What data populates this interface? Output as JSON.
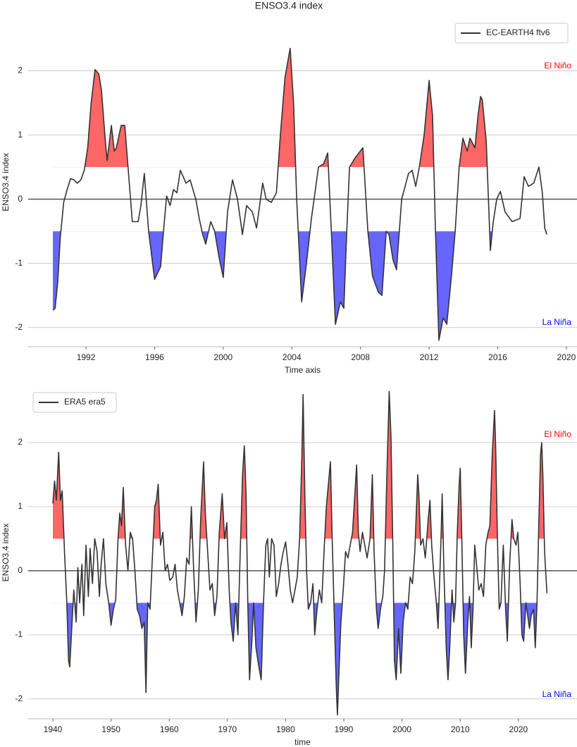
{
  "chart_data": [
    {
      "type": "line",
      "title": "ENSO3.4 index",
      "xlabel": "Time axis",
      "ylabel": "ENSO3.4 index",
      "x": [
        1990.07,
        1990.2,
        1990.35,
        1990.5,
        1990.7,
        1990.9,
        1991.1,
        1991.3,
        1991.5,
        1991.7,
        1991.9,
        1992.1,
        1992.3,
        1992.53,
        1992.75,
        1992.9,
        1993.1,
        1993.23,
        1993.48,
        1993.65,
        1993.77,
        1994.05,
        1994.26,
        1994.45,
        1994.7,
        1995.04,
        1995.2,
        1995.4,
        1995.65,
        1996.0,
        1996.35,
        1996.55,
        1996.7,
        1996.9,
        1997.1,
        1997.3,
        1997.5,
        1997.83,
        1998.07,
        1998.4,
        1998.6,
        1998.8,
        1998.98,
        1999.27,
        1999.5,
        1999.75,
        2000.0,
        2000.25,
        2000.54,
        2000.83,
        2001.12,
        2001.36,
        2001.7,
        2001.94,
        2002.3,
        2002.5,
        2002.8,
        2003.1,
        2003.33,
        2003.6,
        2003.9,
        2004.1,
        2004.28,
        2004.57,
        2004.85,
        2005.14,
        2005.55,
        2005.85,
        2006.09,
        2006.3,
        2006.54,
        2006.83,
        2007.03,
        2007.2,
        2007.36,
        2007.7,
        2008.14,
        2008.43,
        2008.7,
        2009.04,
        2009.25,
        2009.5,
        2009.66,
        2009.9,
        2010.1,
        2010.4,
        2010.8,
        2011.01,
        2011.22,
        2011.43,
        2011.71,
        2012.0,
        2012.2,
        2012.37,
        2012.57,
        2012.82,
        2013.03,
        2013.3,
        2013.52,
        2013.75,
        2013.97,
        2014.22,
        2014.38,
        2014.67,
        2014.85,
        2015.0,
        2015.1,
        2015.33,
        2015.57,
        2015.74,
        2015.94,
        2016.15,
        2016.43,
        2016.84,
        2017.3,
        2017.54,
        2017.79,
        2018.1,
        2018.4,
        2018.6,
        2018.74,
        2018.86
      ],
      "series": [
        {
          "name": "EC-EARTH4 ftv6",
          "color": "#333333",
          "values": [
            -1.73,
            -1.7,
            -1.3,
            -0.6,
            -0.05,
            0.15,
            0.32,
            0.3,
            0.25,
            0.3,
            0.45,
            0.8,
            1.5,
            2.02,
            1.95,
            1.7,
            1.0,
            0.6,
            1.15,
            0.75,
            0.8,
            1.15,
            1.15,
            0.5,
            -0.35,
            -0.35,
            -0.1,
            0.4,
            -0.5,
            -1.25,
            -1.05,
            -0.4,
            0.05,
            -0.1,
            0.15,
            0.1,
            0.45,
            0.25,
            0.3,
            0.0,
            -0.3,
            -0.55,
            -0.7,
            -0.35,
            -0.5,
            -0.9,
            -1.22,
            -0.2,
            0.3,
            0.0,
            -0.55,
            -0.1,
            -0.2,
            -0.45,
            0.25,
            0.0,
            -0.05,
            0.1,
            1.0,
            1.9,
            2.35,
            1.5,
            0.0,
            -1.6,
            -1.0,
            -0.3,
            0.5,
            0.55,
            0.72,
            -0.5,
            -1.95,
            -1.6,
            -1.7,
            -0.5,
            0.5,
            0.65,
            0.8,
            -0.5,
            -1.2,
            -1.45,
            -1.5,
            -0.5,
            -0.55,
            -0.95,
            -1.1,
            0.0,
            0.4,
            0.45,
            0.2,
            0.5,
            1.0,
            1.85,
            1.3,
            -0.5,
            -2.2,
            -1.85,
            -1.95,
            -1.2,
            -0.5,
            0.5,
            0.95,
            0.75,
            0.95,
            0.8,
            1.3,
            1.6,
            1.55,
            0.9,
            -0.8,
            -0.35,
            0.0,
            0.12,
            -0.2,
            -0.35,
            -0.3,
            0.35,
            0.2,
            0.25,
            0.5,
            0.1,
            -0.45,
            -0.55
          ]
        }
      ],
      "xlim": [
        1988.63,
        2020.62
      ],
      "xticks": [
        1992,
        1996,
        2000,
        2004,
        2008,
        2012,
        2016,
        2020
      ],
      "ylim": [
        -2.3,
        2.83
      ],
      "yticks": [
        -2,
        -1,
        0,
        1,
        2
      ],
      "grid": true,
      "hline": 0,
      "fill_above": {
        "level": 0.5,
        "color": "#ff6666"
      },
      "fill_below": {
        "level": -0.5,
        "color": "#6666ff"
      },
      "annotations": [
        {
          "text": "El Niño",
          "color": "#ff0000"
        },
        {
          "text": "La Niña",
          "color": "#0000ff"
        }
      ],
      "legend": "upper right"
    },
    {
      "type": "line",
      "xlabel": "time",
      "ylabel": "ENSO3.4 index",
      "x": [
        1940.0,
        1940.3,
        1940.6,
        1941.0,
        1941.3,
        1941.6,
        1942.0,
        1942.4,
        1942.7,
        1942.9,
        1943.3,
        1943.6,
        1944.0,
        1944.3,
        1944.6,
        1945.0,
        1945.3,
        1945.7,
        1946.1,
        1946.4,
        1946.8,
        1947.2,
        1947.6,
        1948.0,
        1948.3,
        1948.7,
        1949.1,
        1949.6,
        1950.0,
        1950.4,
        1950.8,
        1951.2,
        1951.5,
        1951.8,
        1952.1,
        1952.5,
        1952.9,
        1953.3,
        1953.7,
        1954.1,
        1954.5,
        1954.9,
        1955.3,
        1955.7,
        1956.0,
        1956.3,
        1956.7,
        1957.1,
        1957.5,
        1957.8,
        1958.1,
        1958.5,
        1958.9,
        1959.3,
        1959.7,
        1960.1,
        1960.6,
        1961.0,
        1961.4,
        1961.8,
        1962.2,
        1962.6,
        1963.0,
        1963.4,
        1963.8,
        1964.2,
        1964.6,
        1965.0,
        1965.4,
        1965.9,
        1966.2,
        1966.6,
        1967.0,
        1967.4,
        1967.8,
        1968.2,
        1968.6,
        1969.1,
        1969.5,
        1969.9,
        1970.3,
        1970.6,
        1971.0,
        1971.4,
        1971.8,
        1972.2,
        1972.6,
        1972.9,
        1973.2,
        1973.5,
        1973.8,
        1974.2,
        1974.5,
        1974.9,
        1975.4,
        1975.8,
        1976.2,
        1976.6,
        1976.9,
        1977.2,
        1977.6,
        1978.0,
        1978.4,
        1978.8,
        1979.2,
        1979.6,
        1980.0,
        1980.4,
        1980.8,
        1981.2,
        1981.6,
        1982.0,
        1982.4,
        1982.8,
        1983.0,
        1983.3,
        1983.6,
        1983.9,
        1984.3,
        1984.7,
        1985.0,
        1985.4,
        1985.8,
        1986.2,
        1986.6,
        1987.0,
        1987.4,
        1987.7,
        1988.0,
        1988.3,
        1988.7,
        1988.9,
        1989.2,
        1989.5,
        1989.9,
        1990.3,
        1990.7,
        1991.1,
        1991.5,
        1991.9,
        1992.2,
        1992.5,
        1992.8,
        1993.2,
        1993.6,
        1994.0,
        1994.5,
        1994.9,
        1995.2,
        1995.6,
        1995.9,
        1996.3,
        1996.7,
        1997.0,
        1997.4,
        1997.8,
        1998.1,
        1998.4,
        1998.7,
        1999.0,
        1999.4,
        1999.8,
        2000.2,
        2000.6,
        2001.0,
        2001.4,
        2001.8,
        2002.2,
        2002.7,
        2002.9,
        2003.2,
        2003.6,
        2004.0,
        2004.5,
        2004.8,
        2005.1,
        2005.5,
        2005.9,
        2006.2,
        2006.7,
        2006.9,
        2007.2,
        2007.6,
        2007.9,
        2008.2,
        2008.6,
        2008.9,
        2009.2,
        2009.5,
        2009.8,
        2010.0,
        2010.3,
        2010.6,
        2010.9,
        2011.3,
        2011.6,
        2011.9,
        2012.2,
        2012.5,
        2012.8,
        2013.2,
        2013.6,
        2014.0,
        2014.4,
        2014.8,
        2015.1,
        2015.5,
        2015.9,
        2016.1,
        2016.4,
        2016.7,
        2017.0,
        2017.4,
        2017.8,
        2018.1,
        2018.5,
        2018.9,
        2019.2,
        2019.6,
        2019.9,
        2020.3,
        2020.6,
        2020.9,
        2021.3,
        2021.6,
        2021.9,
        2022.2,
        2022.6,
        2022.9,
        2023.2,
        2023.5,
        2023.8,
        2024.0,
        2024.2,
        2024.5,
        2024.9
      ],
      "series": [
        {
          "name": "ERA5 era5",
          "color": "#333333",
          "values": [
            1.05,
            1.4,
            1.1,
            1.85,
            1.1,
            1.25,
            0.3,
            -0.5,
            -1.4,
            -1.5,
            -0.8,
            -0.3,
            -0.8,
            0.05,
            -0.5,
            0.1,
            -0.7,
            0.4,
            -0.4,
            0.35,
            -0.2,
            0.5,
            0.3,
            -0.4,
            0.1,
            0.5,
            -0.2,
            -0.5,
            -0.85,
            -0.6,
            -0.45,
            0.5,
            0.9,
            0.7,
            1.3,
            0.4,
            0.0,
            0.6,
            0.5,
            0.0,
            -0.6,
            -0.7,
            -0.9,
            -0.8,
            -1.9,
            -0.5,
            -0.6,
            0.2,
            1.0,
            1.1,
            1.35,
            0.4,
            0.6,
            0.0,
            0.1,
            -0.15,
            -0.1,
            0.1,
            -0.3,
            -0.5,
            -0.7,
            -0.4,
            0.2,
            0.1,
            1.0,
            0.0,
            -0.8,
            -0.3,
            0.8,
            1.7,
            0.9,
            0.3,
            -0.3,
            -0.2,
            -0.7,
            -0.4,
            0.6,
            1.2,
            0.5,
            0.75,
            -0.3,
            -0.8,
            -1.1,
            -0.5,
            -1.0,
            0.3,
            1.5,
            1.95,
            1.2,
            -0.5,
            -1.7,
            -1.1,
            -0.5,
            -1.2,
            -1.5,
            -1.7,
            -0.5,
            0.4,
            0.5,
            -0.1,
            0.5,
            0.4,
            -0.4,
            -0.2,
            0.1,
            0.3,
            0.45,
            0.1,
            -0.3,
            -0.5,
            -0.3,
            -0.1,
            0.5,
            1.8,
            2.75,
            1.2,
            0.0,
            -0.6,
            -0.5,
            -0.2,
            -1.0,
            -0.6,
            -0.3,
            -0.5,
            0.3,
            1.0,
            1.4,
            1.7,
            0.5,
            -0.5,
            -1.8,
            -2.25,
            -1.5,
            -0.8,
            -0.3,
            0.3,
            0.2,
            0.4,
            0.6,
            1.2,
            1.65,
            0.6,
            0.3,
            0.6,
            0.4,
            0.2,
            0.5,
            1.5,
            0.3,
            -0.6,
            -0.9,
            -0.6,
            -0.4,
            0.0,
            1.5,
            2.8,
            2.1,
            0.5,
            -1.4,
            -1.7,
            -0.9,
            -1.6,
            -0.8,
            -0.5,
            -0.6,
            -0.1,
            -0.2,
            0.3,
            1.5,
            1.2,
            0.4,
            0.5,
            0.2,
            0.8,
            1.1,
            0.4,
            -0.1,
            -0.5,
            -0.9,
            0.5,
            1.2,
            0.0,
            -1.2,
            -1.7,
            -1.2,
            -0.3,
            -0.8,
            -0.5,
            0.6,
            1.3,
            1.6,
            0.4,
            -1.0,
            -1.6,
            -0.8,
            -0.4,
            -1.2,
            -0.6,
            0.4,
            0.1,
            -0.3,
            -0.2,
            -0.4,
            0.4,
            0.6,
            0.7,
            1.8,
            2.5,
            1.9,
            0.5,
            -0.6,
            -0.5,
            0.4,
            -0.6,
            -1.1,
            0.1,
            0.8,
            0.5,
            0.4,
            0.6,
            -0.2,
            -1.0,
            -1.1,
            -0.5,
            -0.7,
            -0.9,
            -0.7,
            -0.6,
            -1.2,
            -0.5,
            0.7,
            1.8,
            2.0,
            1.5,
            0.3,
            -0.35
          ]
        }
      ],
      "xlim": [
        1935.76,
        2030.07
      ],
      "xticks": [
        1940,
        1950,
        1960,
        1970,
        1980,
        1990,
        2000,
        2010,
        2020
      ],
      "ylim": [
        -2.31,
        2.88
      ],
      "yticks": [
        -2,
        -1,
        0,
        1,
        2
      ],
      "grid": true,
      "hline": 0,
      "fill_above": {
        "level": 0.5,
        "color": "#ff6666"
      },
      "fill_below": {
        "level": -0.5,
        "color": "#6666ff"
      },
      "annotations": [
        {
          "text": "El Niño",
          "color": "#ff0000"
        },
        {
          "text": "La Niña",
          "color": "#0000ff"
        }
      ],
      "legend": "upper left"
    }
  ]
}
